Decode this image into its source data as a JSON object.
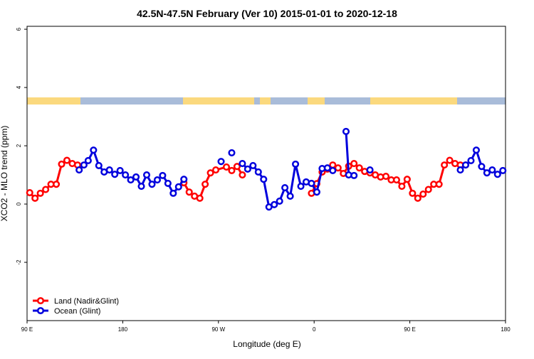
{
  "chart_data": {
    "type": "line",
    "title": "42.5N-47.5N February (Ver 10)   2015-01-01 to 2020-12-18",
    "x_label": "Longitude (deg E)",
    "y_label": "XCO2 - MLO trend (ppm)",
    "xlim": [
      90,
      540
    ],
    "ylim": [
      -4,
      6.1
    ],
    "xticks": [
      {
        "value": 90,
        "label": "90 E"
      },
      180,
      {
        "value": 270,
        "label": "90 W"
      },
      {
        "value": 360,
        "label": "0"
      },
      {
        "value": 450,
        "label": "90 E"
      },
      {
        "value": 540,
        "label": "180"
      }
    ],
    "yticks": [
      -2,
      0,
      2,
      4,
      6
    ],
    "legend": "bottom-left",
    "series": [
      {
        "name": "Land (Nadir&Glint)",
        "color": "#ff0000",
        "x": [
          92.5,
          97.5,
          102.5,
          107.5,
          112.5,
          117.5,
          122.5,
          127.5,
          132.5,
          137.5,
          142.5,
          237.5,
          242.5,
          247.5,
          252.5,
          257.5,
          262.5,
          267.5,
          277.5,
          282.5,
          287.5,
          292.5,
          297.5,
          357.5,
          362.5,
          367.5,
          372.5,
          377.5,
          382.5,
          387.5,
          392.5,
          397.5,
          402.5,
          407.5,
          412.5,
          417.5,
          422.5,
          427.5,
          432.5,
          437.5,
          442.5,
          447.5,
          452.5,
          457.5,
          462.5,
          467.5,
          472.5,
          477.5,
          482.5,
          487.5,
          492.5,
          497.5,
          502.5
        ],
        "values": [
          0.39,
          0.2,
          0.37,
          0.5,
          0.68,
          0.68,
          1.37,
          1.5,
          1.39,
          1.34,
          null,
          0.73,
          0.41,
          0.27,
          0.2,
          0.68,
          1.07,
          1.17,
          1.27,
          1.15,
          1.29,
          1.0,
          null,
          0.37,
          0.7,
          1.1,
          1.2,
          1.34,
          1.24,
          1.05,
          1.3,
          1.39,
          1.24,
          1.12,
          1.07,
          1.0,
          0.93,
          0.95,
          0.83,
          0.83,
          0.61,
          0.85,
          0.37,
          0.2,
          0.34,
          0.5,
          0.68,
          0.68,
          1.34,
          1.5,
          1.39,
          1.34,
          1.34
        ]
      },
      {
        "name": "Ocean (Glint)",
        "color": "#0000dd",
        "x": [
          139,
          143.5,
          147.5,
          152.5,
          157.5,
          162.5,
          167.5,
          172.5,
          177.5,
          182.5,
          187.5,
          192.5,
          197.5,
          202.5,
          207.5,
          212.5,
          217.5,
          222.5,
          227.5,
          232.5,
          237.5,
          242.5,
          272.5,
          277.5,
          282.5,
          287.5,
          292.5,
          297.5,
          302.5,
          307.5,
          312.5,
          317.5,
          322.5,
          327.5,
          332.5,
          337.5,
          342.5,
          347.5,
          352.5,
          357.5,
          362.5,
          367.5,
          372.5,
          377.5,
          382.5,
          390,
          392.5,
          397.5,
          402.5,
          412.5,
          417.5,
          497.5,
          502.5,
          507.5,
          512.5,
          517.5,
          522.5,
          527.5,
          532.5,
          537.5
        ],
        "values": [
          1.17,
          1.34,
          1.49,
          1.85,
          1.32,
          1.1,
          1.17,
          1.02,
          1.15,
          1.0,
          0.83,
          0.93,
          0.61,
          1.0,
          0.68,
          0.83,
          0.98,
          0.71,
          0.37,
          0.59,
          0.85,
          null,
          1.46,
          null,
          1.76,
          null,
          1.39,
          1.2,
          1.32,
          1.1,
          0.85,
          -0.1,
          -0.02,
          0.1,
          0.56,
          0.27,
          1.37,
          0.61,
          0.76,
          0.71,
          0.41,
          1.22,
          1.24,
          1.15,
          null,
          2.49,
          1.0,
          0.98,
          null,
          1.17,
          null,
          1.17,
          1.34,
          1.49,
          1.85,
          1.29,
          1.07,
          1.17,
          1.02,
          1.15
        ]
      }
    ]
  }
}
